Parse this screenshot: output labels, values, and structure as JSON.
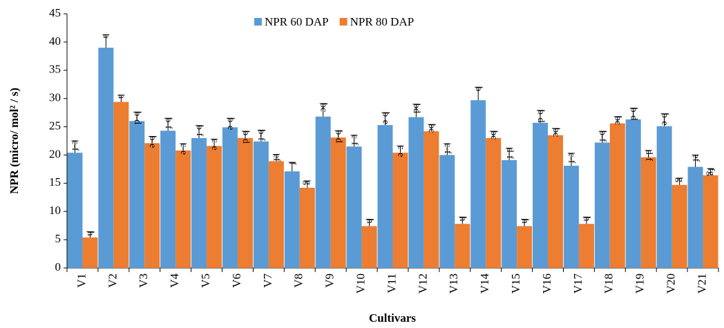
{
  "chart_data": {
    "type": "bar",
    "x_label": "Cultivars",
    "y_label": "NPR (micro/ mol² / s)",
    "categories": [
      "V1",
      "V2",
      "V3",
      "V4",
      "V5",
      "V6",
      "V7",
      "V8",
      "V9",
      "V10",
      "V11",
      "V12",
      "V13",
      "V14",
      "V15",
      "V16",
      "V17",
      "V18",
      "V19",
      "V20",
      "V21"
    ],
    "ylim": [
      0,
      45
    ],
    "yticks": [
      0,
      5,
      10,
      15,
      20,
      25,
      30,
      35,
      40,
      45
    ],
    "legend": "top",
    "series": [
      {
        "name": "NPR 60 DAP",
        "color": "#5b9bd5",
        "values": [
          20.4,
          39,
          26,
          24.3,
          23,
          24.9,
          22.4,
          17.1,
          26.8,
          21.5,
          25.3,
          26.7,
          20,
          29.7,
          19.1,
          25.7,
          18.1,
          22.2,
          26.3,
          25.1,
          17.9
        ],
        "errors": [
          2.1,
          2.3,
          1.6,
          2.2,
          2.2,
          1.6,
          2,
          1.6,
          2.3,
          2,
          2.2,
          2.3,
          2,
          2.3,
          2.1,
          2.2,
          2.2,
          2,
          2,
          2.2,
          2.1
        ],
        "labels": [
          "c-f",
          "a",
          "b-d",
          "b-f",
          "b-f",
          "b-e",
          "b-f",
          "f",
          "bc",
          "c-f",
          "b-e",
          "bd",
          "c-f",
          "b",
          "d-f",
          "b-d",
          "c-f",
          "b-f",
          "b-d",
          "b-e",
          "ef"
        ]
      },
      {
        "name": "NPR 80 DAP",
        "color": "#ed7d31",
        "values": [
          5.4,
          29.4,
          22.1,
          20.8,
          21.6,
          23,
          18.9,
          14.2,
          23.1,
          7.4,
          20.4,
          24.2,
          7.8,
          23,
          7.4,
          23.5,
          7.8,
          25.6,
          19.6,
          14.7,
          16.4
        ],
        "errors": [
          1,
          1.2,
          1.2,
          1.2,
          1.2,
          1.2,
          1.2,
          1.2,
          1.2,
          1.2,
          1.2,
          1.2,
          1.2,
          1.2,
          1.2,
          1.2,
          1.2,
          1.2,
          1.2,
          1.2,
          1.2
        ],
        "labels": [
          "h",
          "a",
          "b-e",
          "c-e",
          "c-e",
          "b-d",
          "ef",
          "g",
          "b-d",
          "h",
          "c-e",
          "bc",
          "h",
          "bc",
          "h",
          "bc",
          "h",
          "bc",
          "d-f",
          "g",
          "fg"
        ]
      }
    ]
  }
}
